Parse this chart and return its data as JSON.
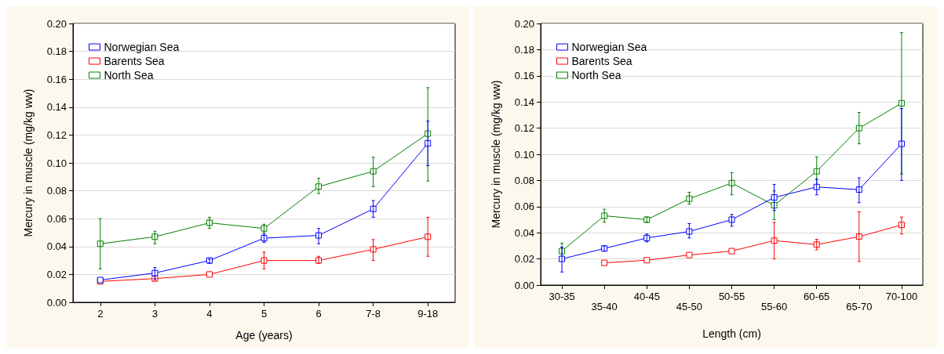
{
  "chart_data": [
    {
      "type": "line",
      "xlabel": "Age (years)",
      "ylabel": "Mercury in muscle (mg/kg ww)",
      "categories": [
        "2",
        "3",
        "4",
        "5",
        "6",
        "7-8",
        "9-18"
      ],
      "series": [
        {
          "name": "Norwegian Sea",
          "color": "#0000ff",
          "values": [
            0.016,
            0.021,
            0.03,
            0.046,
            0.048,
            0.067,
            0.114
          ],
          "errors": [
            null,
            [
              0.017,
              0.025
            ],
            [
              0.028,
              0.031
            ],
            [
              0.043,
              0.049
            ],
            [
              0.042,
              0.053
            ],
            [
              0.061,
              0.073
            ],
            [
              0.098,
              0.13
            ]
          ]
        },
        {
          "name": "Barents Sea",
          "color": "#ff0000",
          "values": [
            0.015,
            0.017,
            0.02,
            0.03,
            0.03,
            0.038,
            0.047
          ],
          "errors": [
            null,
            [
              0.016,
              0.019
            ],
            null,
            [
              0.024,
              0.036
            ],
            [
              0.028,
              0.033
            ],
            [
              0.03,
              0.045
            ],
            [
              0.033,
              0.061
            ]
          ]
        },
        {
          "name": "North Sea",
          "color": "#008000",
          "values": [
            0.042,
            0.047,
            0.057,
            0.053,
            0.083,
            0.094,
            0.121
          ],
          "errors": [
            [
              0.024,
              0.06
            ],
            [
              0.042,
              0.051
            ],
            [
              0.053,
              0.061
            ],
            [
              0.05,
              0.056
            ],
            [
              0.078,
              0.089
            ],
            [
              0.083,
              0.104
            ],
            [
              0.087,
              0.154
            ]
          ]
        }
      ],
      "ylim": [
        0,
        0.2
      ],
      "yticks": [
        {
          "value": 0,
          "label": "0.00"
        },
        {
          "value": 0.02,
          "label": "0.02"
        },
        {
          "value": 0.04,
          "label": "0.04"
        },
        {
          "value": 0.06,
          "label": "0.06"
        },
        {
          "value": 0.08,
          "label": "0.08"
        },
        {
          "value": 0.1,
          "label": "0.10"
        },
        {
          "value": 0.12,
          "label": "0.12"
        },
        {
          "value": 0.14,
          "label": "0.14"
        },
        {
          "value": 0.16,
          "label": "0.16"
        },
        {
          "value": 0.18,
          "label": "0.18"
        },
        {
          "value": 0.2,
          "label": "0.20"
        }
      ],
      "grid": "y",
      "legend": "top left",
      "marker": "square",
      "line_style": "solid"
    },
    {
      "type": "line",
      "xlabel": "Length (cm)",
      "ylabel": "Mercury in muscle (mg/kg ww)",
      "categories": [
        "30-35",
        "35-40",
        "40-45",
        "45-50",
        "50-55",
        "55-60",
        "60-65",
        "65-70",
        "70-100"
      ],
      "series": [
        {
          "name": "Norwegian Sea",
          "color": "#0000ff",
          "values": [
            0.02,
            0.028,
            0.036,
            0.041,
            0.05,
            0.067,
            0.075,
            0.073,
            0.108
          ],
          "errors": [
            [
              0.01,
              0.029
            ],
            [
              0.026,
              0.03
            ],
            [
              0.033,
              0.039
            ],
            [
              0.036,
              0.047
            ],
            [
              0.045,
              0.054
            ],
            [
              0.057,
              0.077
            ],
            [
              0.069,
              0.081
            ],
            [
              0.063,
              0.082
            ],
            [
              0.08,
              0.135
            ]
          ]
        },
        {
          "name": "Barents Sea",
          "color": "#ff0000",
          "values": [
            null,
            0.017,
            0.019,
            0.023,
            0.026,
            0.034,
            0.031,
            0.037,
            0.046
          ],
          "errors": [
            null,
            null,
            null,
            null,
            null,
            [
              0.02,
              0.048
            ],
            [
              0.027,
              0.035
            ],
            [
              0.018,
              0.056
            ],
            [
              0.039,
              0.052
            ]
          ]
        },
        {
          "name": "North Sea",
          "color": "#008000",
          "values": [
            0.026,
            0.053,
            0.05,
            0.066,
            0.078,
            0.061,
            0.087,
            0.12,
            0.139
          ],
          "errors": [
            [
              0.021,
              0.032
            ],
            [
              0.048,
              0.058
            ],
            [
              0.048,
              0.052
            ],
            [
              0.062,
              0.071
            ],
            [
              0.069,
              0.086
            ],
            [
              0.05,
              0.072
            ],
            [
              0.075,
              0.098
            ],
            [
              0.108,
              0.132
            ],
            [
              0.085,
              0.193
            ]
          ]
        }
      ],
      "ylim": [
        0,
        0.2
      ],
      "yticks": [
        {
          "value": 0,
          "label": "0.00"
        },
        {
          "value": 0.02,
          "label": "0.02"
        },
        {
          "value": 0.04,
          "label": "0.04"
        },
        {
          "value": 0.06,
          "label": "0.06"
        },
        {
          "value": 0.08,
          "label": "0.08"
        },
        {
          "value": 0.1,
          "label": "0.10"
        },
        {
          "value": 0.12,
          "label": "0.12"
        },
        {
          "value": 0.14,
          "label": "0.14"
        },
        {
          "value": 0.16,
          "label": "0.16"
        },
        {
          "value": 0.18,
          "label": "0.18"
        },
        {
          "value": 0.2,
          "label": "0.20"
        }
      ],
      "grid": "y",
      "legend": "top left",
      "marker": "square",
      "line_style": "solid"
    }
  ]
}
